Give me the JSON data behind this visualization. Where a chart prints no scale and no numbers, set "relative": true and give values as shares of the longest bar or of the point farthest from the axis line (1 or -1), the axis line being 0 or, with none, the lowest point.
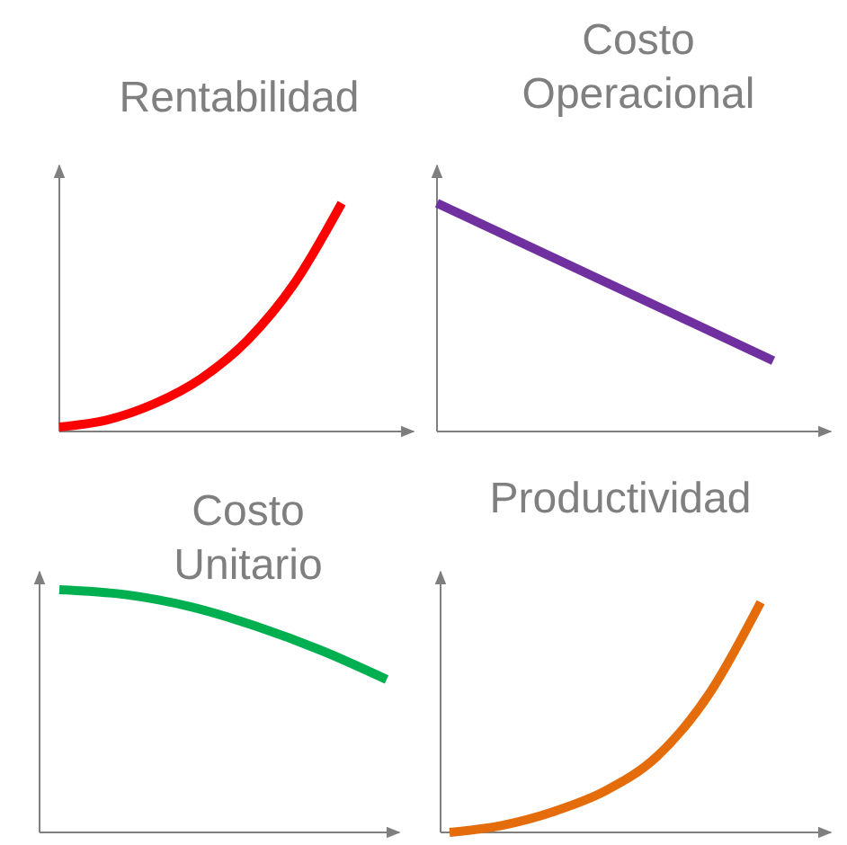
{
  "chart_data": [
    {
      "type": "line",
      "title": "Rentabilidad",
      "relative": true,
      "categories": [
        null,
        null,
        null,
        null,
        null,
        null,
        null
      ],
      "series": [
        {
          "color": "#ff0000",
          "values": [
            0.02,
            0.05,
            0.12,
            0.23,
            0.4,
            0.65,
            1
          ]
        }
      ],
      "marker": "none",
      "line_style": "solid"
    },
    {
      "type": "line",
      "title": "Costo Operacional",
      "relative": true,
      "categories": [
        null,
        null
      ],
      "series": [
        {
          "color": "#7030a0",
          "values": [
            1,
            0.31
          ]
        }
      ],
      "marker": "none",
      "line_style": "solid"
    },
    {
      "type": "line",
      "title": "Costo Unitario",
      "relative": true,
      "categories": [
        null,
        null,
        null,
        null,
        null,
        null
      ],
      "series": [
        {
          "color": "#00b050",
          "values": [
            1,
            0.98,
            0.93,
            0.85,
            0.75,
            0.63
          ]
        }
      ],
      "marker": "none",
      "line_style": "solid"
    },
    {
      "type": "line",
      "title": "Productividad",
      "relative": true,
      "categories": [
        null,
        null,
        null,
        null,
        null,
        null,
        null
      ],
      "series": [
        {
          "color": "#e46c0a",
          "values": [
            0,
            0.03,
            0.09,
            0.18,
            0.33,
            0.6,
            1
          ]
        }
      ],
      "marker": "none",
      "line_style": "solid"
    }
  ]
}
